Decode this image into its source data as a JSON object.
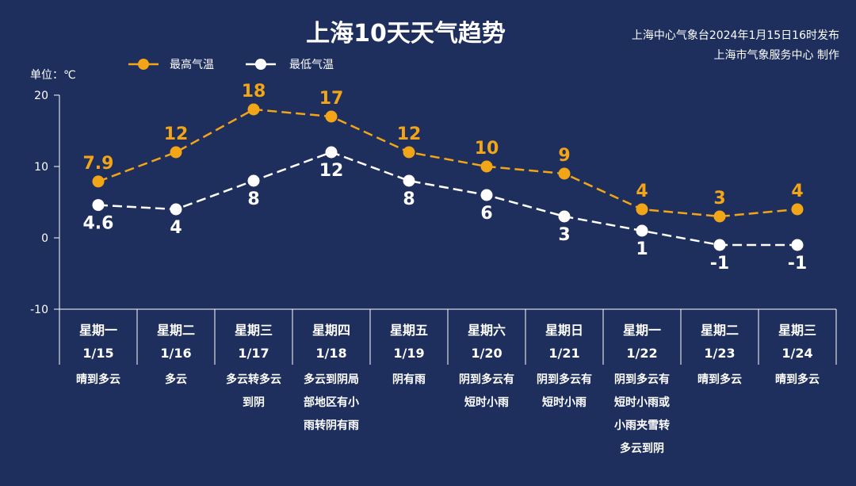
{
  "header": {
    "title": "上海10天天气趋势",
    "source_line1": "上海中心气象台2024年1月15日16时发布",
    "source_line2": "上海市气象服务中心 制作"
  },
  "colors": {
    "background": "#1e2f5e",
    "high": "#f2a516",
    "low": "#ffffff",
    "axis": "#ffffff"
  },
  "chart_data": {
    "type": "line",
    "unit_label": "单位：℃",
    "ylim": [
      -10,
      20
    ],
    "yticks": [
      "20",
      "10",
      "0",
      "-10"
    ],
    "legend_position": "top-left",
    "series": [
      {
        "name": "最高气温",
        "color": "#f2a516",
        "values": [
          7.9,
          12,
          18,
          17,
          12,
          10,
          9,
          4,
          3,
          4
        ],
        "labels": [
          "7.9",
          "12",
          "18",
          "17",
          "12",
          "10",
          "9",
          "4",
          "3",
          "4"
        ]
      },
      {
        "name": "最低气温",
        "color": "#ffffff",
        "values": [
          4.6,
          4,
          8,
          12,
          8,
          6,
          3,
          1,
          -1,
          -1
        ],
        "labels": [
          "4.6",
          "4",
          "8",
          "12",
          "8",
          "6",
          "3",
          "1",
          "-1",
          "-1"
        ]
      }
    ],
    "days": [
      {
        "weekday": "星期一",
        "date": "1/15",
        "weather": [
          "晴到多云"
        ]
      },
      {
        "weekday": "星期二",
        "date": "1/16",
        "weather": [
          "多云"
        ]
      },
      {
        "weekday": "星期三",
        "date": "1/17",
        "weather": [
          "多云转多云",
          "到阴"
        ]
      },
      {
        "weekday": "星期四",
        "date": "1/18",
        "weather": [
          "多云到阴局",
          "部地区有小",
          "雨转阴有雨"
        ]
      },
      {
        "weekday": "星期五",
        "date": "1/19",
        "weather": [
          "阴有雨"
        ]
      },
      {
        "weekday": "星期六",
        "date": "1/20",
        "weather": [
          "阴到多云有",
          "短时小雨"
        ]
      },
      {
        "weekday": "星期日",
        "date": "1/21",
        "weather": [
          "阴到多云有",
          "短时小雨"
        ]
      },
      {
        "weekday": "星期一",
        "date": "1/22",
        "weather": [
          "阴到多云有",
          "短时小雨或",
          "小雨夹雪转",
          "多云到阴"
        ]
      },
      {
        "weekday": "星期二",
        "date": "1/23",
        "weather": [
          "晴到多云"
        ]
      },
      {
        "weekday": "星期三",
        "date": "1/24",
        "weather": [
          "晴到多云"
        ]
      }
    ]
  }
}
